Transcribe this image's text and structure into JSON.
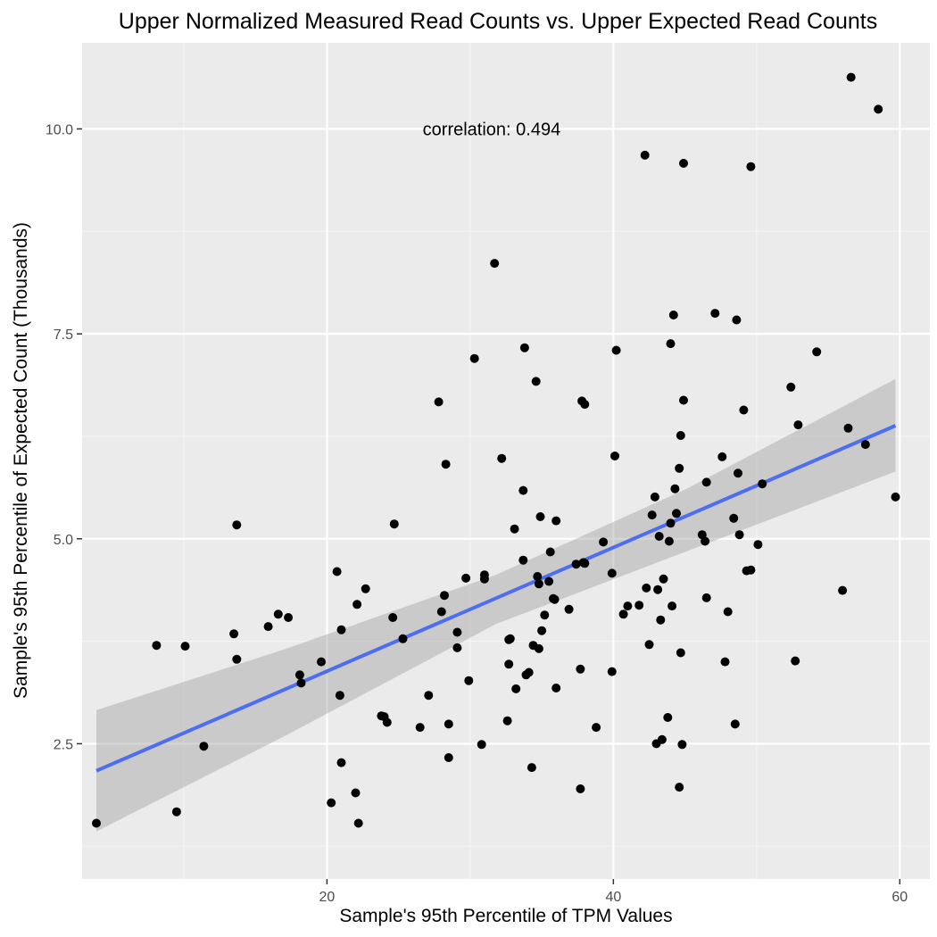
{
  "chart_data": {
    "type": "scatter",
    "title": "Upper Normalized Measured Read Counts vs. Upper Expected Read Counts",
    "xlabel": "Sample's 95th Percentile of TPM Values",
    "ylabel": "Sample's 95th Percentile of Expected Count (Thousands)",
    "xlim": [
      2.9,
      62.1
    ],
    "ylim": [
      0.85,
      11.05
    ],
    "x_ticks": [
      20,
      40,
      60
    ],
    "x_tick_labels": [
      "20",
      "40",
      "60"
    ],
    "y_ticks": [
      2.5,
      5.0,
      7.5,
      10.0
    ],
    "y_tick_labels": [
      "2.5",
      "5.0",
      "7.5",
      "10.0"
    ],
    "grid": true,
    "annotation": {
      "text": "correlation: 0.494",
      "x": 31.5,
      "y": 10.0
    },
    "trend": {
      "method": "linear",
      "x_range": [
        3.9,
        59.7
      ],
      "line": [
        [
          3.9,
          2.17
        ],
        [
          59.7,
          6.38
        ]
      ],
      "band": [
        [
          3.9,
          1.43,
          2.91
        ],
        [
          17.0,
          2.59,
          3.65
        ],
        [
          31.8,
          3.96,
          4.56
        ],
        [
          45.0,
          4.84,
          5.6
        ],
        [
          59.7,
          5.82,
          6.95
        ]
      ]
    },
    "points": [
      [
        3.9,
        1.53
      ],
      [
        8.1,
        3.7
      ],
      [
        9.5,
        1.67
      ],
      [
        10.1,
        3.69
      ],
      [
        11.4,
        2.47
      ],
      [
        13.5,
        3.84
      ],
      [
        13.7,
        3.53
      ],
      [
        13.7,
        5.17
      ],
      [
        15.9,
        3.93
      ],
      [
        16.6,
        4.08
      ],
      [
        17.3,
        4.04
      ],
      [
        18.1,
        3.34
      ],
      [
        18.2,
        3.24
      ],
      [
        19.6,
        3.5
      ],
      [
        20.3,
        1.78
      ],
      [
        20.7,
        4.6
      ],
      [
        20.9,
        3.09
      ],
      [
        21.0,
        2.27
      ],
      [
        21.0,
        3.89
      ],
      [
        22.0,
        1.9
      ],
      [
        22.1,
        4.2
      ],
      [
        22.2,
        1.53
      ],
      [
        22.7,
        4.39
      ],
      [
        23.8,
        2.84
      ],
      [
        24.0,
        2.83
      ],
      [
        24.2,
        2.76
      ],
      [
        24.6,
        4.04
      ],
      [
        24.7,
        5.18
      ],
      [
        25.3,
        3.78
      ],
      [
        26.5,
        2.7
      ],
      [
        27.1,
        3.09
      ],
      [
        27.8,
        6.67
      ],
      [
        28.0,
        4.11
      ],
      [
        28.2,
        4.31
      ],
      [
        28.3,
        5.91
      ],
      [
        28.5,
        2.33
      ],
      [
        28.5,
        2.74
      ],
      [
        29.1,
        3.86
      ],
      [
        29.1,
        3.67
      ],
      [
        29.7,
        4.52
      ],
      [
        29.9,
        3.27
      ],
      [
        30.3,
        7.2
      ],
      [
        30.8,
        2.49
      ],
      [
        31.0,
        4.56
      ],
      [
        31.0,
        4.51
      ],
      [
        31.7,
        8.36
      ],
      [
        32.2,
        5.98
      ],
      [
        32.6,
        2.78
      ],
      [
        32.7,
        3.77
      ],
      [
        32.7,
        3.47
      ],
      [
        32.8,
        3.78
      ],
      [
        33.1,
        5.12
      ],
      [
        33.2,
        3.17
      ],
      [
        33.7,
        4.74
      ],
      [
        33.7,
        5.59
      ],
      [
        33.8,
        7.33
      ],
      [
        33.9,
        3.34
      ],
      [
        34.1,
        3.37
      ],
      [
        34.3,
        2.21
      ],
      [
        34.4,
        3.7
      ],
      [
        34.6,
        6.92
      ],
      [
        34.7,
        4.54
      ],
      [
        34.8,
        3.66
      ],
      [
        34.8,
        4.45
      ],
      [
        34.9,
        5.27
      ],
      [
        35.0,
        3.88
      ],
      [
        35.2,
        4.07
      ],
      [
        35.5,
        4.48
      ],
      [
        35.6,
        4.84
      ],
      [
        35.8,
        4.27
      ],
      [
        35.9,
        4.26
      ],
      [
        36.0,
        3.18
      ],
      [
        36.0,
        5.22
      ],
      [
        36.9,
        4.14
      ],
      [
        37.4,
        4.69
      ],
      [
        37.7,
        1.95
      ],
      [
        37.7,
        3.41
      ],
      [
        37.8,
        6.68
      ],
      [
        37.9,
        4.71
      ],
      [
        38.0,
        4.7
      ],
      [
        38.0,
        6.64
      ],
      [
        38.8,
        2.7
      ],
      [
        39.3,
        4.96
      ],
      [
        39.9,
        3.38
      ],
      [
        39.9,
        4.58
      ],
      [
        40.1,
        6.01
      ],
      [
        40.2,
        7.3
      ],
      [
        40.7,
        4.08
      ],
      [
        41.0,
        4.18
      ],
      [
        41.8,
        4.19
      ],
      [
        42.2,
        9.68
      ],
      [
        42.3,
        4.4
      ],
      [
        42.5,
        3.71
      ],
      [
        42.7,
        5.29
      ],
      [
        42.9,
        5.51
      ],
      [
        43.0,
        2.5
      ],
      [
        43.1,
        4.38
      ],
      [
        43.2,
        5.03
      ],
      [
        43.3,
        4.01
      ],
      [
        43.4,
        2.55
      ],
      [
        43.5,
        4.51
      ],
      [
        43.8,
        2.82
      ],
      [
        43.9,
        4.97
      ],
      [
        44.0,
        5.19
      ],
      [
        44.0,
        7.38
      ],
      [
        44.1,
        4.18
      ],
      [
        44.2,
        7.73
      ],
      [
        44.3,
        5.61
      ],
      [
        44.4,
        5.31
      ],
      [
        44.6,
        5.86
      ],
      [
        44.6,
        1.97
      ],
      [
        44.7,
        6.26
      ],
      [
        44.7,
        3.61
      ],
      [
        44.8,
        2.49
      ],
      [
        44.9,
        6.69
      ],
      [
        44.9,
        9.58
      ],
      [
        46.2,
        5.05
      ],
      [
        46.4,
        4.97
      ],
      [
        46.5,
        4.28
      ],
      [
        46.5,
        5.69
      ],
      [
        47.1,
        7.75
      ],
      [
        47.6,
        6.0
      ],
      [
        47.8,
        3.5
      ],
      [
        48.0,
        4.11
      ],
      [
        48.4,
        5.25
      ],
      [
        48.5,
        2.74
      ],
      [
        48.6,
        7.67
      ],
      [
        48.7,
        5.8
      ],
      [
        48.8,
        5.05
      ],
      [
        49.1,
        6.57
      ],
      [
        49.3,
        4.61
      ],
      [
        49.6,
        4.62
      ],
      [
        49.6,
        9.54
      ],
      [
        50.1,
        4.93
      ],
      [
        50.4,
        5.67
      ],
      [
        52.4,
        6.85
      ],
      [
        52.7,
        3.51
      ],
      [
        52.9,
        6.39
      ],
      [
        54.2,
        7.28
      ],
      [
        56.0,
        4.37
      ],
      [
        56.4,
        6.35
      ],
      [
        56.6,
        10.63
      ],
      [
        57.6,
        6.15
      ],
      [
        58.5,
        10.24
      ],
      [
        59.7,
        5.51
      ]
    ]
  }
}
